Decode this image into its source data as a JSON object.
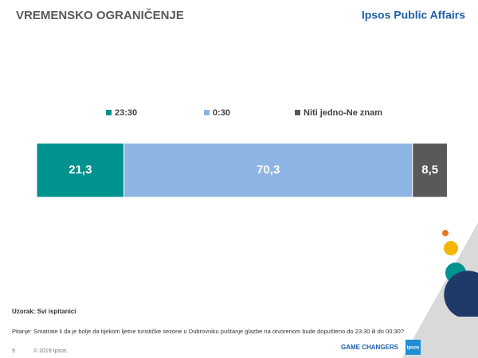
{
  "header": {
    "brand": "Ipsos Public Affairs"
  },
  "chart_data": {
    "type": "stacked-bar",
    "title": "VREMENSKO OGRANIČENJE",
    "xlim": [
      0,
      100
    ],
    "series": [
      {
        "name": "23:30",
        "color": "#00928f",
        "values": [
          21.3
        ],
        "value_labels": [
          "21,3"
        ]
      },
      {
        "name": "0:30",
        "color": "#8eb4e3",
        "values": [
          70.3
        ],
        "value_labels": [
          "70,3"
        ]
      },
      {
        "name": "Niti jedno-Ne znam",
        "color": "#595959",
        "values": [
          8.5
        ],
        "value_labels": [
          "8,5"
        ]
      }
    ]
  },
  "footer": {
    "sample": "Uzorak: Svi ispitanici",
    "question": "Pitanje: Smatrate li da je bolje da tijekom ljetne turističke sezone u Dubrovniku puštanje glazbe na otvorenom bude dopušteno do 23:30 ili do 00:30?",
    "page": "9",
    "copyright": "© 2019 Ipsos.",
    "tagline": "GAME CHANGERS",
    "logo": "Ipsos"
  }
}
